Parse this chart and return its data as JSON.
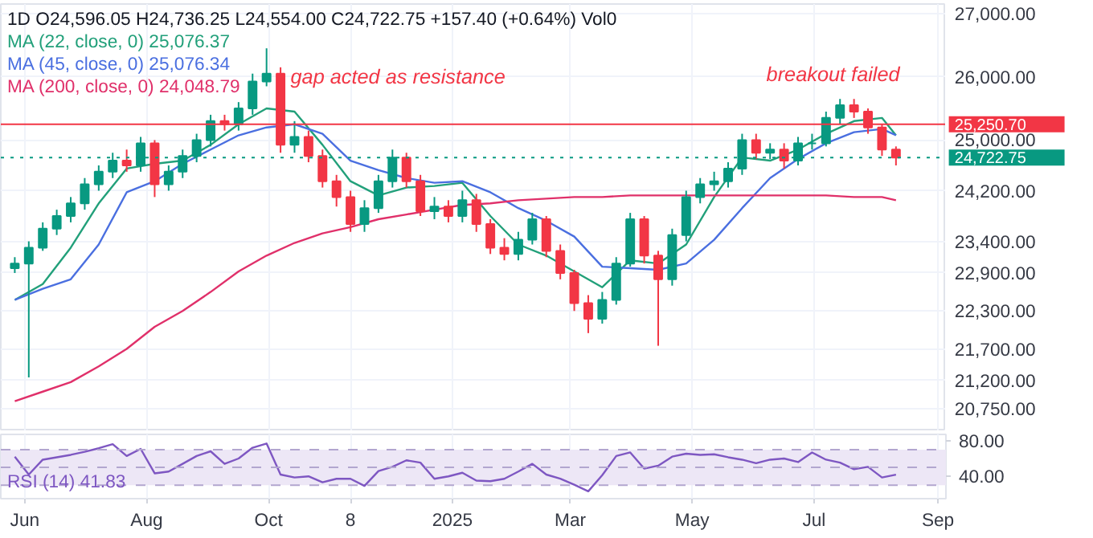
{
  "chart_data": [
    {
      "type": "candlestick",
      "title": "1D  O24,596.05  H24,736.25  L24,554.00  C24,722.75  +157.40 (+0.64%)  Vol0",
      "x": [
        "2024-05-27",
        "2024-06-03",
        "2024-06-10",
        "2024-06-17",
        "2024-06-24",
        "2024-07-01",
        "2024-07-08",
        "2024-07-15",
        "2024-07-22",
        "2024-07-29",
        "2024-08-05",
        "2024-08-12",
        "2024-08-19",
        "2024-08-26",
        "2024-09-02",
        "2024-09-09",
        "2024-09-16",
        "2024-09-23",
        "2024-09-30",
        "2024-10-07",
        "2024-10-14",
        "2024-10-21",
        "2024-10-28",
        "2024-11-04",
        "2024-11-11",
        "2024-11-18",
        "2024-11-25",
        "2024-12-02",
        "2024-12-09",
        "2024-12-16",
        "2024-12-23",
        "2024-12-30",
        "2025-01-06",
        "2025-01-13",
        "2025-01-20",
        "2025-01-27",
        "2025-02-03",
        "2025-02-10",
        "2025-02-17",
        "2025-02-24",
        "2025-03-03",
        "2025-03-10",
        "2025-03-17",
        "2025-03-24",
        "2025-03-31",
        "2025-04-07",
        "2025-04-14",
        "2025-04-21",
        "2025-04-28",
        "2025-05-05",
        "2025-05-12",
        "2025-05-19",
        "2025-05-26",
        "2025-06-02",
        "2025-06-09",
        "2025-06-16",
        "2025-06-23",
        "2025-06-30",
        "2025-07-07",
        "2025-07-14",
        "2025-07-21",
        "2025-07-28",
        "2025-08-04",
        "2025-08-11"
      ],
      "ohlc": [
        [
          22975,
          23150,
          22900,
          23050
        ],
        [
          23050,
          23400,
          21250,
          23300
        ],
        [
          23300,
          23700,
          23250,
          23600
        ],
        [
          23600,
          23900,
          23500,
          23800
        ],
        [
          23800,
          24100,
          23700,
          24000
        ],
        [
          24000,
          24400,
          23900,
          24300
        ],
        [
          24300,
          24600,
          24200,
          24500
        ],
        [
          24500,
          24800,
          24400,
          24675
        ],
        [
          24675,
          24850,
          24500,
          24600
        ],
        [
          24600,
          25050,
          24500,
          24950
        ],
        [
          24950,
          25000,
          24100,
          24300
        ],
        [
          24300,
          24600,
          24200,
          24500
        ],
        [
          24500,
          24850,
          24400,
          24750
        ],
        [
          24750,
          25100,
          24650,
          25000
        ],
        [
          25000,
          25400,
          24900,
          25300
        ],
        [
          25300,
          25400,
          25150,
          25250
        ],
        [
          25250,
          25600,
          25150,
          25500
        ],
        [
          25500,
          26050,
          25400,
          25925
        ],
        [
          25925,
          26450,
          25850,
          26050
        ],
        [
          26050,
          26150,
          24800,
          24925
        ],
        [
          24925,
          25300,
          24800,
          25050
        ],
        [
          25050,
          25150,
          24650,
          24750
        ],
        [
          24750,
          24850,
          24250,
          24350
        ],
        [
          24350,
          24450,
          23950,
          24100
        ],
        [
          24100,
          24200,
          23550,
          23675
        ],
        [
          23675,
          24050,
          23550,
          23925
        ],
        [
          23925,
          24450,
          23850,
          24350
        ],
        [
          24350,
          24850,
          24250,
          24725
        ],
        [
          24725,
          24800,
          24250,
          24350
        ],
        [
          24350,
          24450,
          23800,
          23875
        ],
        [
          23875,
          24100,
          23750,
          23950
        ],
        [
          23950,
          24050,
          23700,
          23800
        ],
        [
          23800,
          24200,
          23700,
          24050
        ],
        [
          24050,
          24150,
          23550,
          23675
        ],
        [
          23675,
          23750,
          23200,
          23300
        ],
        [
          23300,
          23450,
          23100,
          23200
        ],
        [
          23200,
          23550,
          23100,
          23425
        ],
        [
          23425,
          23850,
          23350,
          23750
        ],
        [
          23750,
          23800,
          23150,
          23250
        ],
        [
          23250,
          23350,
          22800,
          22900
        ],
        [
          22900,
          22950,
          22300,
          22425
        ],
        [
          22425,
          22550,
          21950,
          22175
        ],
        [
          22175,
          22600,
          22100,
          22475
        ],
        [
          22475,
          23150,
          22400,
          23050
        ],
        [
          23050,
          23850,
          23000,
          23750
        ],
        [
          23750,
          23800,
          23050,
          23175
        ],
        [
          23175,
          23250,
          21750,
          22800
        ],
        [
          22800,
          23600,
          22700,
          23500
        ],
        [
          23500,
          24200,
          23400,
          24100
        ],
        [
          24100,
          24400,
          24000,
          24300
        ],
        [
          24300,
          24500,
          24200,
          24350
        ],
        [
          24350,
          24650,
          24250,
          24550
        ],
        [
          24550,
          25100,
          24450,
          25000
        ],
        [
          25000,
          25100,
          24700,
          24800
        ],
        [
          24800,
          24950,
          24700,
          24850
        ],
        [
          24850,
          24950,
          24550,
          24675
        ],
        [
          24675,
          25050,
          24600,
          24950
        ],
        [
          24950,
          25100,
          24850,
          24950
        ],
        [
          24950,
          25450,
          24900,
          25350
        ],
        [
          25350,
          25650,
          25250,
          25550
        ],
        [
          25550,
          25650,
          25350,
          25450
        ],
        [
          25450,
          25500,
          25100,
          25200
        ],
        [
          25200,
          25250,
          24750,
          24850
        ],
        [
          24850,
          24900,
          24600,
          24722.75
        ]
      ],
      "series": [
        {
          "type": "line",
          "name": "MA (22, close, 0)  25,076.37",
          "color": "#22a07a",
          "x": [
            "2024-05-27",
            "2024-06-10",
            "2024-06-24",
            "2024-07-08",
            "2024-07-22",
            "2024-08-05",
            "2024-08-19",
            "2024-09-02",
            "2024-09-16",
            "2024-09-30",
            "2024-10-14",
            "2024-10-28",
            "2024-11-11",
            "2024-11-25",
            "2024-12-09",
            "2024-12-23",
            "2025-01-06",
            "2025-01-20",
            "2025-02-03",
            "2025-02-17",
            "2025-03-03",
            "2025-03-17",
            "2025-03-31",
            "2025-04-14",
            "2025-04-28",
            "2025-05-12",
            "2025-05-26",
            "2025-06-09",
            "2025-06-23",
            "2025-07-07",
            "2025-07-21",
            "2025-08-04",
            "2025-08-11"
          ],
          "values": [
            22475,
            22725,
            23300,
            24000,
            24550,
            24625,
            24675,
            24925,
            25250,
            25500,
            25450,
            24925,
            24350,
            24125,
            24250,
            24275,
            24325,
            23800,
            23350,
            23175,
            22925,
            22675,
            23100,
            23050,
            23350,
            24100,
            24725,
            24675,
            24850,
            25100,
            25300,
            25350,
            25076.37
          ]
        },
        {
          "type": "line",
          "name": "MA (45, close, 0)  25,076.34",
          "color": "#4a6fe0",
          "x": [
            "2024-05-27",
            "2024-06-10",
            "2024-06-24",
            "2024-07-08",
            "2024-07-22",
            "2024-08-05",
            "2024-08-19",
            "2024-09-02",
            "2024-09-16",
            "2024-09-30",
            "2024-10-14",
            "2024-10-28",
            "2024-11-11",
            "2024-11-25",
            "2024-12-09",
            "2024-12-23",
            "2025-01-06",
            "2025-01-20",
            "2025-02-03",
            "2025-02-17",
            "2025-03-03",
            "2025-03-17",
            "2025-03-31",
            "2025-04-14",
            "2025-04-28",
            "2025-05-12",
            "2025-05-26",
            "2025-06-09",
            "2025-06-23",
            "2025-07-07",
            "2025-07-21",
            "2025-08-04",
            "2025-08-11"
          ],
          "values": [
            22475,
            22650,
            22800,
            23350,
            24175,
            24350,
            24625,
            24850,
            25075,
            25200,
            25250,
            25100,
            24675,
            24525,
            24400,
            24325,
            24350,
            24175,
            23925,
            23725,
            23475,
            23000,
            22975,
            22950,
            23050,
            23425,
            23925,
            24400,
            24700,
            24950,
            25125,
            25175,
            25076.34
          ]
        },
        {
          "type": "line",
          "name": "MA (200, close, 0)  24,048.79",
          "color": "#e0306a",
          "x": [
            "2024-05-27",
            "2024-06-10",
            "2024-06-24",
            "2024-07-08",
            "2024-07-22",
            "2024-08-05",
            "2024-08-19",
            "2024-09-02",
            "2024-09-16",
            "2024-09-30",
            "2024-10-14",
            "2024-10-28",
            "2024-11-11",
            "2024-11-25",
            "2024-12-09",
            "2024-12-23",
            "2025-01-06",
            "2025-01-20",
            "2025-02-03",
            "2025-02-17",
            "2025-03-03",
            "2025-03-17",
            "2025-03-31",
            "2025-04-14",
            "2025-04-28",
            "2025-05-12",
            "2025-05-26",
            "2025-06-09",
            "2025-06-23",
            "2025-07-07",
            "2025-07-21",
            "2025-08-04",
            "2025-08-11"
          ],
          "values": [
            20875,
            21025,
            21175,
            21425,
            21700,
            22050,
            22300,
            22600,
            22925,
            23175,
            23375,
            23525,
            23625,
            23750,
            23825,
            23900,
            23975,
            24000,
            24050,
            24075,
            24100,
            24100,
            24125,
            24125,
            24125,
            24125,
            24125,
            24125,
            24125,
            24125,
            24100,
            24100,
            24048.79
          ]
        }
      ],
      "xlim": [
        "2024-05-20",
        "2025-09-05"
      ],
      "xticks": [
        {
          "value": "2024-06-01",
          "label": null
        },
        {
          "value": "2024-08-01",
          "label": null
        },
        {
          "value": "2024-10-01",
          "label": null
        },
        {
          "value": "2024-11-11",
          "label": null
        },
        {
          "value": "2025-01-01",
          "label": null
        },
        {
          "value": "2025-03-01",
          "label": null
        },
        {
          "value": "2025-05-01",
          "label": null
        },
        {
          "value": "2025-07-01",
          "label": null
        },
        {
          "value": "2025-09-01",
          "label": null
        }
      ],
      "ylim": [
        20400,
        27150
      ],
      "yticks": [
        {
          "value": 20750,
          "label": "20,750.00"
        },
        {
          "value": 21200,
          "label": "21,200.00"
        },
        {
          "value": 21700,
          "label": "21,700.00"
        },
        {
          "value": 22300,
          "label": "22,300.00"
        },
        {
          "value": 22900,
          "label": "22,900.00"
        },
        {
          "value": 23400,
          "label": "23,400.00"
        },
        {
          "value": 24200,
          "label": "24,200.00"
        },
        {
          "value": 25000,
          "label": "25,000.00"
        },
        {
          "value": 26000,
          "label": "26,000.00"
        },
        {
          "value": 27000,
          "label": "27,000.00"
        }
      ],
      "tick_labels": "y",
      "grid": true,
      "legend": "top left",
      "ref_lines": [
        {
          "axis": "y",
          "value": 25250.7,
          "label": "25,250.70",
          "color": "#f23645",
          "line_style": "solid"
        },
        {
          "axis": "y",
          "value": 24722.75,
          "label": "24,722.75",
          "color": "#089981",
          "line_style": "dotted"
        }
      ],
      "annotations": [
        {
          "text": "gap acted as resistance",
          "x": "2024-10-12",
          "y": 26000
        },
        "breakout failed"
      ]
    },
    {
      "type": "line",
      "series": [
        {
          "name": "RSI (14)  41.83",
          "color": "#7e57c2",
          "x": [
            "2024-05-27",
            "2024-06-03",
            "2024-06-10",
            "2024-06-17",
            "2024-06-24",
            "2024-07-01",
            "2024-07-08",
            "2024-07-15",
            "2024-07-22",
            "2024-07-29",
            "2024-08-05",
            "2024-08-12",
            "2024-08-19",
            "2024-08-26",
            "2024-09-02",
            "2024-09-09",
            "2024-09-16",
            "2024-09-23",
            "2024-09-30",
            "2024-10-07",
            "2024-10-14",
            "2024-10-21",
            "2024-10-28",
            "2024-11-04",
            "2024-11-11",
            "2024-11-18",
            "2024-11-25",
            "2024-12-02",
            "2024-12-09",
            "2024-12-16",
            "2024-12-23",
            "2024-12-30",
            "2025-01-06",
            "2025-01-13",
            "2025-01-20",
            "2025-01-27",
            "2025-02-03",
            "2025-02-10",
            "2025-02-17",
            "2025-02-24",
            "2025-03-03",
            "2025-03-10",
            "2025-03-17",
            "2025-03-24",
            "2025-03-31",
            "2025-04-07",
            "2025-04-14",
            "2025-04-21",
            "2025-04-28",
            "2025-05-05",
            "2025-05-12",
            "2025-05-19",
            "2025-05-26",
            "2025-06-02",
            "2025-06-09",
            "2025-06-16",
            "2025-06-23",
            "2025-06-30",
            "2025-07-07",
            "2025-07-14",
            "2025-07-21",
            "2025-07-28",
            "2025-08-04",
            "2025-08-11"
          ],
          "values": [
            62.1,
            42.0,
            58.7,
            61.4,
            64.1,
            67.5,
            71.5,
            76.1,
            62.8,
            70.8,
            43.4,
            45.4,
            54.0,
            62.8,
            68.1,
            54.0,
            60.0,
            72.1,
            76.8,
            42.0,
            38.7,
            40.0,
            33.3,
            37.3,
            37.3,
            29.3,
            46.0,
            50.7,
            58.0,
            55.4,
            37.3,
            40.0,
            44.0,
            35.3,
            34.6,
            37.3,
            45.4,
            54.0,
            42.0,
            37.3,
            30.6,
            23.2,
            41.3,
            62.8,
            66.8,
            48.7,
            52.0,
            62.1,
            65.4,
            64.1,
            64.7,
            61.4,
            58.7,
            54.7,
            58.7,
            60.0,
            56.0,
            66.8,
            58.7,
            55.4,
            48.0,
            50.7,
            38.7,
            41.83
          ]
        }
      ],
      "xlim": [
        "2024-05-20",
        "2025-09-05"
      ],
      "xticks": [
        {
          "value": "2024-06-01",
          "label": "Jun"
        },
        {
          "value": "2024-08-01",
          "label": "Aug"
        },
        {
          "value": "2024-10-01",
          "label": "Oct"
        },
        {
          "value": "2024-11-11",
          "label": "8"
        },
        {
          "value": "2025-01-01",
          "label": "2025"
        },
        {
          "value": "2025-03-01",
          "label": "Mar"
        },
        {
          "value": "2025-05-01",
          "label": "May"
        },
        {
          "value": "2025-07-01",
          "label": "Jul"
        },
        {
          "value": "2025-09-01",
          "label": "Sep"
        }
      ],
      "ylim": [
        15,
        87
      ],
      "yticks": [
        {
          "value": 80,
          "label": "80.00"
        },
        {
          "value": 40,
          "label": "40.00"
        }
      ],
      "grid": "x",
      "legend": "bottom left",
      "bands": [
        {
          "axis": "y",
          "from": 30,
          "to": 70,
          "color": "#ede7f6"
        }
      ],
      "ref_lines": [
        {
          "axis": "y",
          "value": 70,
          "color": "#b2a6cf",
          "line_style": "dashed"
        },
        {
          "axis": "y",
          "value": 50,
          "color": "#b2a6cf",
          "line_style": "dashed"
        },
        {
          "axis": "y",
          "value": 30,
          "color": "#b2a6cf",
          "line_style": "dashed"
        }
      ]
    }
  ]
}
